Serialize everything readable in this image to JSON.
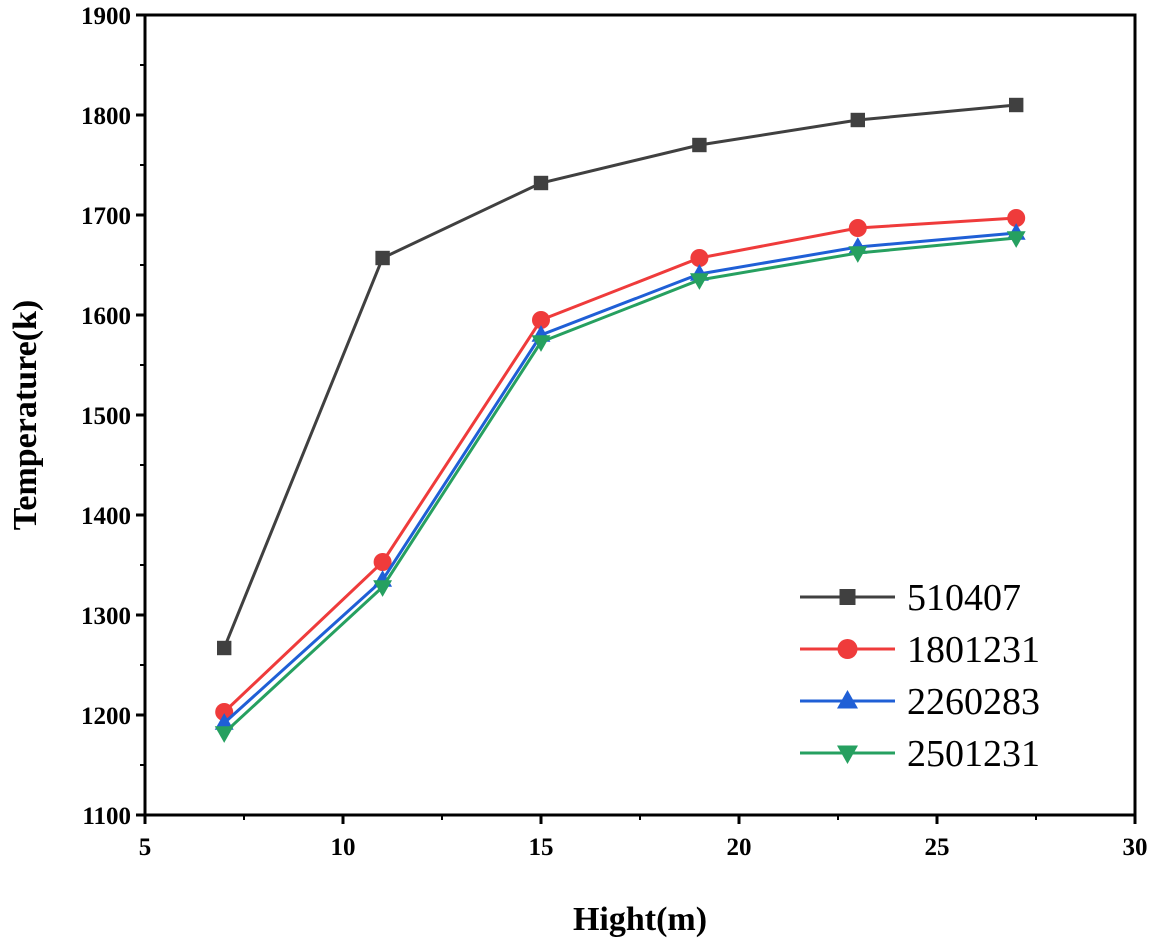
{
  "chart_data": {
    "type": "line",
    "title": "",
    "xlabel": "Hight(m)",
    "ylabel": "Temperature(k)",
    "xlim": [
      5,
      30
    ],
    "ylim": [
      1100,
      1900
    ],
    "xticks": [
      5,
      10,
      15,
      20,
      25,
      30
    ],
    "yticks": [
      1100,
      1200,
      1300,
      1400,
      1500,
      1600,
      1700,
      1800,
      1900
    ],
    "x": [
      7,
      11,
      15,
      19,
      23,
      27
    ],
    "legend_position": "bottom-right",
    "series": [
      {
        "name": "510407",
        "color": "#404040",
        "marker": "square",
        "values": [
          1267,
          1657,
          1732,
          1770,
          1795,
          1810
        ]
      },
      {
        "name": "1801231",
        "color": "#ef3b3b",
        "marker": "circle",
        "values": [
          1203,
          1353,
          1595,
          1657,
          1687,
          1697
        ]
      },
      {
        "name": "2260283",
        "color": "#1f5fd6",
        "marker": "triangle-up",
        "values": [
          1192,
          1335,
          1580,
          1641,
          1668,
          1682
        ]
      },
      {
        "name": "2501231",
        "color": "#26a060",
        "marker": "triangle-down",
        "values": [
          1182,
          1328,
          1573,
          1635,
          1662,
          1677
        ]
      }
    ]
  }
}
